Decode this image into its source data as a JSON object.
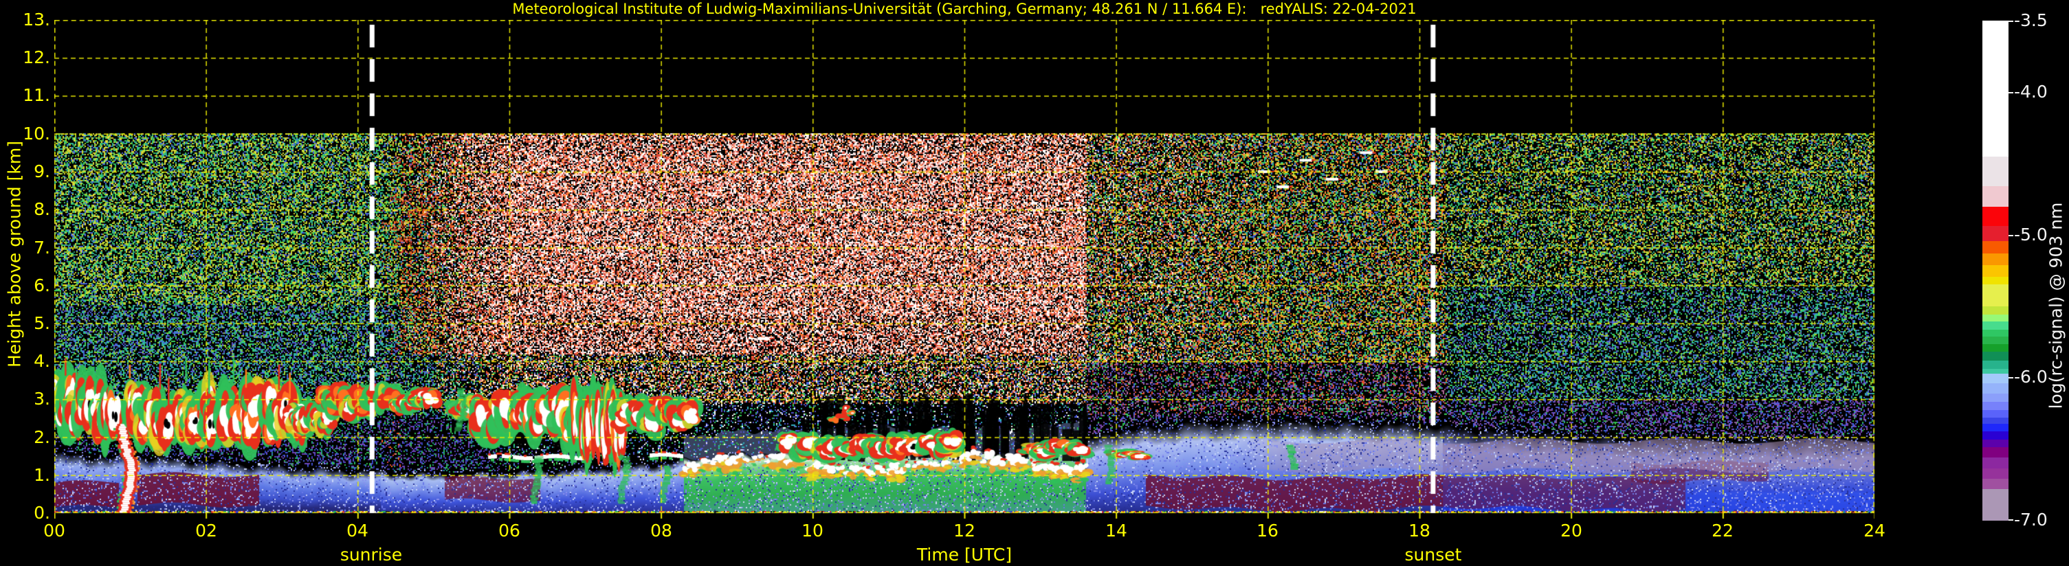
{
  "title": "Meteorological Institute of Ludwig-Maximilians-Universität (Garching, Germany; 48.261 N / 11.664 E):   redYALIS: 22-04-2021",
  "axes": {
    "y_label": "Height above ground [km]",
    "x_label": "Time [UTC]",
    "y_ticks": [
      "13.",
      "12.",
      "11.",
      "10.",
      "9.",
      "8.",
      "7.",
      "6.",
      "5.",
      "4.",
      "3.",
      "2.",
      "1.",
      "0."
    ],
    "x_ticks": [
      "00",
      "02",
      "04",
      "06",
      "08",
      "10",
      "12",
      "14",
      "16",
      "18",
      "20",
      "22",
      "24"
    ]
  },
  "annotations": [
    {
      "label": "sunrise",
      "time_utc_hours": 4.19
    },
    {
      "label": "sunset",
      "time_utc_hours": 18.18
    }
  ],
  "colorbar": {
    "label": "log(rc-signal) @ 903 nm",
    "ticks": [
      "-3.5",
      "-4.0",
      "-5.0",
      "-6.0",
      "-7.0"
    ],
    "tick_values": [
      -3.5,
      -4.0,
      -5.0,
      -6.0,
      -7.0
    ],
    "range": [
      -3.5,
      -7.0
    ],
    "segments": [
      [
        "#ffffff",
        198
      ],
      [
        "#ebe3e7",
        43
      ],
      [
        "#f0c9d0",
        30
      ],
      [
        "#fb040a",
        28
      ],
      [
        "#e51f2e",
        22
      ],
      [
        "#f85a00",
        18
      ],
      [
        "#fa9800",
        17
      ],
      [
        "#fbc500",
        17
      ],
      [
        "#f0e300",
        11
      ],
      [
        "#e6ef4d",
        32
      ],
      [
        "#c3e53b",
        12
      ],
      [
        "#97f977",
        10
      ],
      [
        "#47dc8d",
        12
      ],
      [
        "#2fc763",
        10
      ],
      [
        "#28b44b",
        11
      ],
      [
        "#16a02b",
        11
      ],
      [
        "#108f56",
        13
      ],
      [
        "#27b38c",
        12
      ],
      [
        "#3dc8a1",
        7
      ],
      [
        "#a3c9fa",
        14
      ],
      [
        "#95b3fa",
        15
      ],
      [
        "#8b9ffa",
        12
      ],
      [
        "#7781fa",
        12
      ],
      [
        "#5a63fa",
        11
      ],
      [
        "#3b45e8",
        9
      ],
      [
        "#1f28fa",
        11
      ],
      [
        "#2a01d3",
        12
      ],
      [
        "#5c01ab",
        11
      ],
      [
        "#800080",
        15
      ],
      [
        "#8c28a0",
        16
      ],
      [
        "#96329b",
        15
      ],
      [
        "#a050a0",
        15
      ],
      [
        "#ab97b5",
        45
      ]
    ]
  },
  "colors": {
    "background": "#000000",
    "axis_text": "#ffff00",
    "grid": "#f0f000",
    "colorbar_text": "#f2f2f2",
    "event_line": "#ffffff"
  },
  "chart_data": {
    "type": "heatmap",
    "instrument": "redYALIS",
    "date": "22-04-2021",
    "site": "Garching, Germany; 48.261 N / 11.664 E",
    "quantity": "log(rc-signal) @ 903 nm",
    "x_range_hours": [
      0,
      24
    ],
    "y_range_km": [
      0,
      13
    ],
    "data_top_km": 10,
    "value_range": [
      -3.5,
      -7.0
    ],
    "events": [
      {
        "label": "sunrise",
        "time_utc_hours": 4.19
      },
      {
        "label": "sunset",
        "time_utc_hours": 18.18
      }
    ],
    "render": {
      "bl_top": [
        [
          0,
          1.55
        ],
        [
          0.8,
          1.45
        ],
        [
          1,
          1.5
        ],
        [
          2,
          1.35
        ],
        [
          3,
          1.2
        ],
        [
          4,
          1.1
        ],
        [
          5,
          1.0
        ],
        [
          6,
          1.05
        ],
        [
          7,
          1.15
        ],
        [
          8,
          1.3
        ],
        [
          8.5,
          1.45
        ],
        [
          9,
          1.55
        ],
        [
          10,
          1.6
        ],
        [
          11,
          1.65
        ],
        [
          12,
          1.6
        ],
        [
          13,
          1.65
        ],
        [
          13.6,
          1.9
        ],
        [
          14,
          2.15
        ],
        [
          15,
          2.35
        ],
        [
          16,
          2.4
        ],
        [
          17,
          2.35
        ],
        [
          18,
          2.3
        ],
        [
          19,
          2.15
        ],
        [
          20,
          2.0
        ],
        [
          21,
          1.95
        ],
        [
          22,
          1.9
        ],
        [
          23,
          1.9
        ],
        [
          24,
          1.9
        ]
      ],
      "clouds": [
        {
          "type": "band",
          "t0": 0.02,
          "t1": 0.78,
          "k0": 2.0,
          "k1": 3.55,
          "cells": 6,
          "hole": 0.5
        },
        {
          "type": "precip",
          "t0": 0.8,
          "t1": 1.12,
          "k0": 0.02,
          "k1": 2.35
        },
        {
          "type": "band",
          "t0": 1.12,
          "t1": 3.12,
          "k0": 1.95,
          "k1": 3.35,
          "cells": 14,
          "hole": 0.35
        },
        {
          "type": "band",
          "t0": 3.1,
          "t1": 3.6,
          "k0": 2.1,
          "k1": 2.85,
          "cells": 4,
          "hole": 0
        },
        {
          "type": "band",
          "t0": 3.55,
          "t1": 4.45,
          "k0": 2.6,
          "k1": 3.3,
          "cells": 6,
          "hole": 0,
          "thin": 1
        },
        {
          "type": "band",
          "t0": 4.55,
          "t1": 4.98,
          "k0": 2.7,
          "k1": 3.25,
          "cells": 3,
          "hole": 0
        },
        {
          "type": "band",
          "t0": 5.28,
          "t1": 5.65,
          "k0": 2.55,
          "k1": 3.05,
          "cells": 3,
          "hole": 0
        },
        {
          "type": "band",
          "t0": 5.62,
          "t1": 7.3,
          "k0": 1.85,
          "k1": 3.15,
          "cells": 9,
          "hole": 0.15
        },
        {
          "type": "strip",
          "t0": 5.72,
          "t1": 7.05,
          "k0": 1.4,
          "k1": 1.55
        },
        {
          "type": "band",
          "t0": 6.9,
          "t1": 7.5,
          "k0": 1.5,
          "k1": 2.9,
          "cells": 5,
          "hole": 0,
          "tall": 1
        },
        {
          "type": "band",
          "t0": 7.5,
          "t1": 8.35,
          "k0": 2.2,
          "k1": 3.0,
          "cells": 5,
          "hole": 0
        },
        {
          "type": "strip",
          "t0": 7.85,
          "t1": 8.25,
          "k0": 1.45,
          "k1": 1.58
        },
        {
          "type": "tops",
          "t0": 8.35,
          "t1": 13.6,
          "k0": 1.05,
          "k1": 1.62
        },
        {
          "type": "band",
          "t0": 9.7,
          "t1": 11.85,
          "k0": 1.45,
          "k1": 2.05,
          "cells": 12,
          "hole": 0.1
        },
        {
          "type": "bits",
          "t0": 10.22,
          "t1": 10.62,
          "k0": 2.45,
          "k1": 2.9
        },
        {
          "type": "band",
          "t0": 12.9,
          "t1": 13.55,
          "k0": 1.5,
          "k1": 1.9,
          "cells": 4,
          "hole": 0
        },
        {
          "type": "band",
          "t0": 14.02,
          "t1": 14.3,
          "k0": 1.45,
          "k1": 1.65,
          "cells": 2,
          "hole": 0
        }
      ],
      "plumes": [
        [
          6.35,
          0.3,
          1.5
        ],
        [
          7.5,
          0.3,
          1.5
        ],
        [
          8.05,
          0.3,
          1.25
        ],
        [
          5.35,
          2.2,
          3.3
        ],
        [
          13.9,
          0.8,
          1.8
        ],
        [
          16.3,
          1.2,
          1.8
        ]
      ],
      "maroon_bands": [
        [
          0,
          0.85,
          0.15,
          0.8,
          0.9
        ],
        [
          1.1,
          2.7,
          0.2,
          1.0,
          0.9
        ],
        [
          5.15,
          6.4,
          0.3,
          0.9,
          0.75
        ],
        [
          14.4,
          18.3,
          0.12,
          0.95,
          0.85
        ],
        [
          18.3,
          21.5,
          0.12,
          0.95,
          0.6
        ],
        [
          20.8,
          22.6,
          0.85,
          1.35,
          0.5
        ]
      ],
      "contrails": [
        [
          15.95,
          9.0
        ],
        [
          16.5,
          9.3
        ],
        [
          16.85,
          8.8
        ],
        [
          17.3,
          9.5
        ],
        [
          17.5,
          9.0
        ],
        [
          16.2,
          8.6
        ],
        [
          9.35,
          4.6
        ]
      ],
      "dawn_spots": [
        [
          4.45,
          7.6
        ],
        [
          4.6,
          7.2
        ],
        [
          4.78,
          7.9
        ],
        [
          4.55,
          8.3
        ],
        [
          5.0,
          7.0
        ],
        [
          5.12,
          7.55
        ],
        [
          4.9,
          8.0
        ]
      ],
      "needle_times": [
        0.1,
        0.35,
        0.6,
        0.9,
        1.3,
        1.55,
        1.8,
        2.05,
        2.4,
        2.6,
        2.9,
        3.05
      ],
      "black_streaks": {
        "t0": 9.85,
        "t1": 13.6,
        "n": 70
      },
      "palettes": {
        "nightHigh": [
          "#3cd25a",
          "#9cd22e",
          "#2fb49b",
          "#d2cd2e",
          "#4a66dd",
          "#28a06e",
          "#e0e040"
        ],
        "nightMid": [
          "#3cd25a",
          "#2fb49b",
          "#4a66dd",
          "#5a50c0",
          "#9cd22e",
          "#30b0b0"
        ],
        "nightLow": [
          "#4a5ae0",
          "#6a48c0",
          "#3040b8",
          "#30c050",
          "#20a080",
          "#7040b0"
        ],
        "dawnRed": [
          "#e04830",
          "#ff7020",
          "#d0b0a0",
          "#c03020"
        ],
        "dayHot": [
          "#ffffff",
          "#ffffff",
          "#f2cfc8",
          "#e04634",
          "#ff8030",
          "#efb4ac",
          "#d85040"
        ],
        "dayWarm": [
          "#ffffff",
          "#e04634",
          "#ff8030",
          "#f2cfc8",
          "#30c050",
          "#4a66dd",
          "#e8d040"
        ],
        "dayLow": [
          "#4a5ae0",
          "#30b0c0",
          "#30c050",
          "#ffffff",
          "#5a50c0"
        ],
        "duskMix": [
          "#e05028",
          "#ff8c28",
          "#e8d040",
          "#3cd25a",
          "#2fb49b",
          "#4a66dd",
          "#9cd22e"
        ],
        "duskLow": [
          "#4a66dd",
          "#7040b0",
          "#e05028",
          "#3cd25a",
          "#b06a9a"
        ],
        "eveOrange": [
          "#e07828",
          "#d2cd2e",
          "#c86020"
        ],
        "eveMauve": [
          "#a58ab2",
          "#8060a0",
          "#4a5ae0",
          "#9a7fae"
        ],
        "eveLow": [
          "#4a5ae0",
          "#7040b0",
          "#9060a0",
          "#30c050",
          "#3868e0",
          "#8048b8"
        ],
        "blSpeck": [
          "#c8d4f8",
          "#25309a",
          "#6a78e8",
          "#8890ee"
        ],
        "bottomRow": [
          "#d82828",
          "#28c050",
          "#e8e020",
          "#111111",
          "#f5f5f5",
          "#3040d0",
          "#ff8020"
        ]
      }
    }
  }
}
